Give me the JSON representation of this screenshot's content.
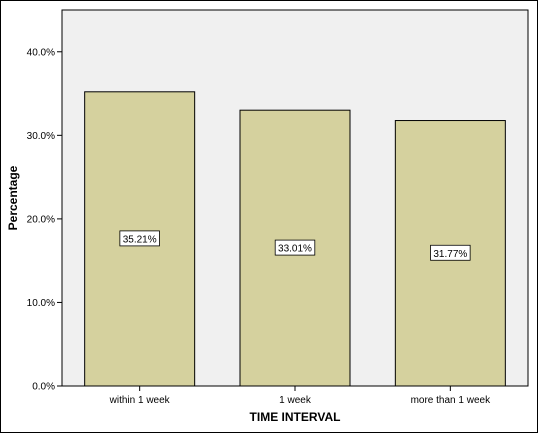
{
  "chart_data": {
    "type": "bar",
    "title": "",
    "xlabel": "TIME INTERVAL",
    "ylabel": "Percentage",
    "categories": [
      "within 1 week",
      "1 week",
      "more than 1 week"
    ],
    "values": [
      35.21,
      33.01,
      31.77
    ],
    "data_labels": [
      "35.21%",
      "33.01%",
      "31.77%"
    ],
    "ylim": [
      0,
      45
    ],
    "yticks": [
      0,
      10,
      20,
      30,
      40
    ],
    "ytick_labels": [
      "0.0%",
      "10.0%",
      "20.0%",
      "30.0%",
      "40.0%"
    ],
    "grid": false,
    "legend": "none",
    "colors": {
      "bar_fill": "#d5d19e",
      "bar_stroke": "#000000",
      "plot_background": "#f0f0f0",
      "label_box": "#ffffff"
    }
  }
}
